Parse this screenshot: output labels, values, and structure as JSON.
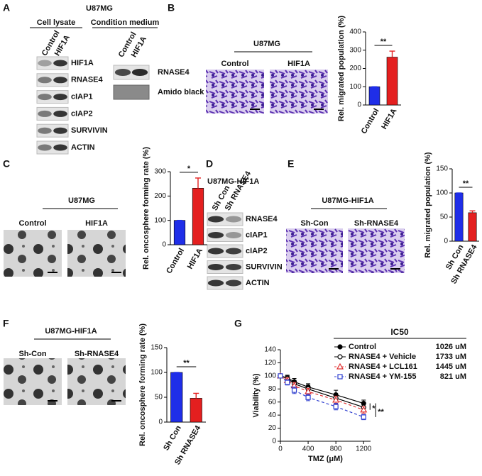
{
  "panels": {
    "A": {
      "letter": "A",
      "title": "U87MG",
      "cell_lysate": "Cell lysate",
      "condition_medium": "Condition medium",
      "lanes_lysate": [
        "Control",
        "HIF1A"
      ],
      "lanes_medium": [
        "Control",
        "HIF1A"
      ],
      "rows_lysate": [
        "HIF1A",
        "RNASE4",
        "cIAP1",
        "cIAP2",
        "SURVIVIN",
        "ACTIN"
      ],
      "rows_medium": [
        "RNASE4",
        "Amido black"
      ]
    },
    "B": {
      "letter": "B",
      "title": "U87MG",
      "images": [
        "Control",
        "HIF1A"
      ]
    },
    "C": {
      "letter": "C",
      "title": "U87MG",
      "images": [
        "Control",
        "HIF1A"
      ]
    },
    "D": {
      "letter": "D",
      "title": "U87MG-HIF1A",
      "lanes": [
        "Sh Con",
        "Sh RNASE4"
      ],
      "rows": [
        "RNASE4",
        "cIAP1",
        "cIAP2",
        "SURVIVIN",
        "ACTIN"
      ]
    },
    "E": {
      "letter": "E",
      "title": "U87MG-HIF1A",
      "images": [
        "Sh-Con",
        "Sh-RNASE4"
      ]
    },
    "F": {
      "letter": "F",
      "title": "U87MG-HIF1A",
      "images": [
        "Sh-Con",
        "Sh-RNASE4"
      ]
    },
    "G": {
      "letter": "G"
    }
  },
  "chart_data": [
    {
      "type": "bar",
      "ylabel": "Rel. migrated population (%)",
      "categories": [
        "Control",
        "HIF1A"
      ],
      "values": [
        100,
        262
      ],
      "errors": [
        0,
        33
      ],
      "colors": [
        "#1f2ee8",
        "#e41f1f"
      ],
      "ylim": [
        0,
        400
      ],
      "yticks": [
        0,
        100,
        200,
        300,
        400
      ],
      "significance": "**"
    },
    {
      "type": "bar",
      "ylabel": "Rel. oncosphere forming rate (%)",
      "categories": [
        "Control",
        "HIF1A"
      ],
      "values": [
        100,
        232
      ],
      "errors": [
        0,
        42
      ],
      "colors": [
        "#1f2ee8",
        "#e41f1f"
      ],
      "ylim": [
        0,
        300
      ],
      "yticks": [
        0,
        100,
        200,
        300
      ],
      "significance": "*"
    },
    {
      "type": "bar",
      "ylabel": "Rel. migrated population (%)",
      "categories": [
        "Sh Con",
        "Sh RNASE4"
      ],
      "values": [
        100,
        59
      ],
      "errors": [
        0,
        4
      ],
      "colors": [
        "#1f2ee8",
        "#e41f1f"
      ],
      "ylim": [
        0,
        150
      ],
      "yticks": [
        0,
        50,
        100,
        150
      ],
      "significance": "**"
    },
    {
      "type": "bar",
      "ylabel": "Rel. oncosphere forming rate (%)",
      "categories": [
        "Sh Con",
        "Sh RNASE4"
      ],
      "values": [
        100,
        48
      ],
      "errors": [
        0,
        10
      ],
      "colors": [
        "#1f2ee8",
        "#e41f1f"
      ],
      "ylim": [
        0,
        150
      ],
      "yticks": [
        0,
        50,
        100,
        150
      ],
      "significance": "**"
    },
    {
      "type": "line",
      "title": "IC50",
      "xlabel": "TMZ (μM)",
      "ylabel": "Viability (%)",
      "x": [
        0,
        100,
        200,
        400,
        800,
        1200
      ],
      "xlim": [
        0,
        1300
      ],
      "xticks": [
        0,
        400,
        800,
        1200
      ],
      "ylim": [
        0,
        140
      ],
      "yticks": [
        0,
        20,
        40,
        60,
        80,
        100,
        120,
        140
      ],
      "series": [
        {
          "name": "Control",
          "ic50": "1026 uM",
          "color": "#000000",
          "marker": "filled-circle",
          "dash": false,
          "values": [
            100,
            97,
            91,
            83,
            71,
            58
          ],
          "errors": [
            2,
            4,
            5,
            5,
            7,
            5
          ]
        },
        {
          "name": "RNASE4 + Vehicle",
          "ic50": "1733 uM",
          "color": "#000000",
          "marker": "circle",
          "dash": false,
          "values": [
            100,
            96,
            88,
            80,
            66,
            52
          ],
          "errors": [
            2,
            4,
            5,
            6,
            6,
            5
          ]
        },
        {
          "name": "RNASE4 + LCL161",
          "ic50": "1445 uM",
          "color": "#e03030",
          "marker": "triangle",
          "dash": true,
          "values": [
            100,
            93,
            85,
            76,
            63,
            48
          ],
          "errors": [
            2,
            4,
            5,
            5,
            6,
            5
          ]
        },
        {
          "name": "RNASE4 + YM-155",
          "ic50": "821 uM",
          "color": "#3040d0",
          "marker": "square",
          "dash": true,
          "values": [
            100,
            90,
            78,
            67,
            53,
            37
          ],
          "errors": [
            2,
            4,
            5,
            5,
            5,
            4
          ]
        }
      ],
      "significance": [
        "*",
        "**"
      ]
    }
  ]
}
